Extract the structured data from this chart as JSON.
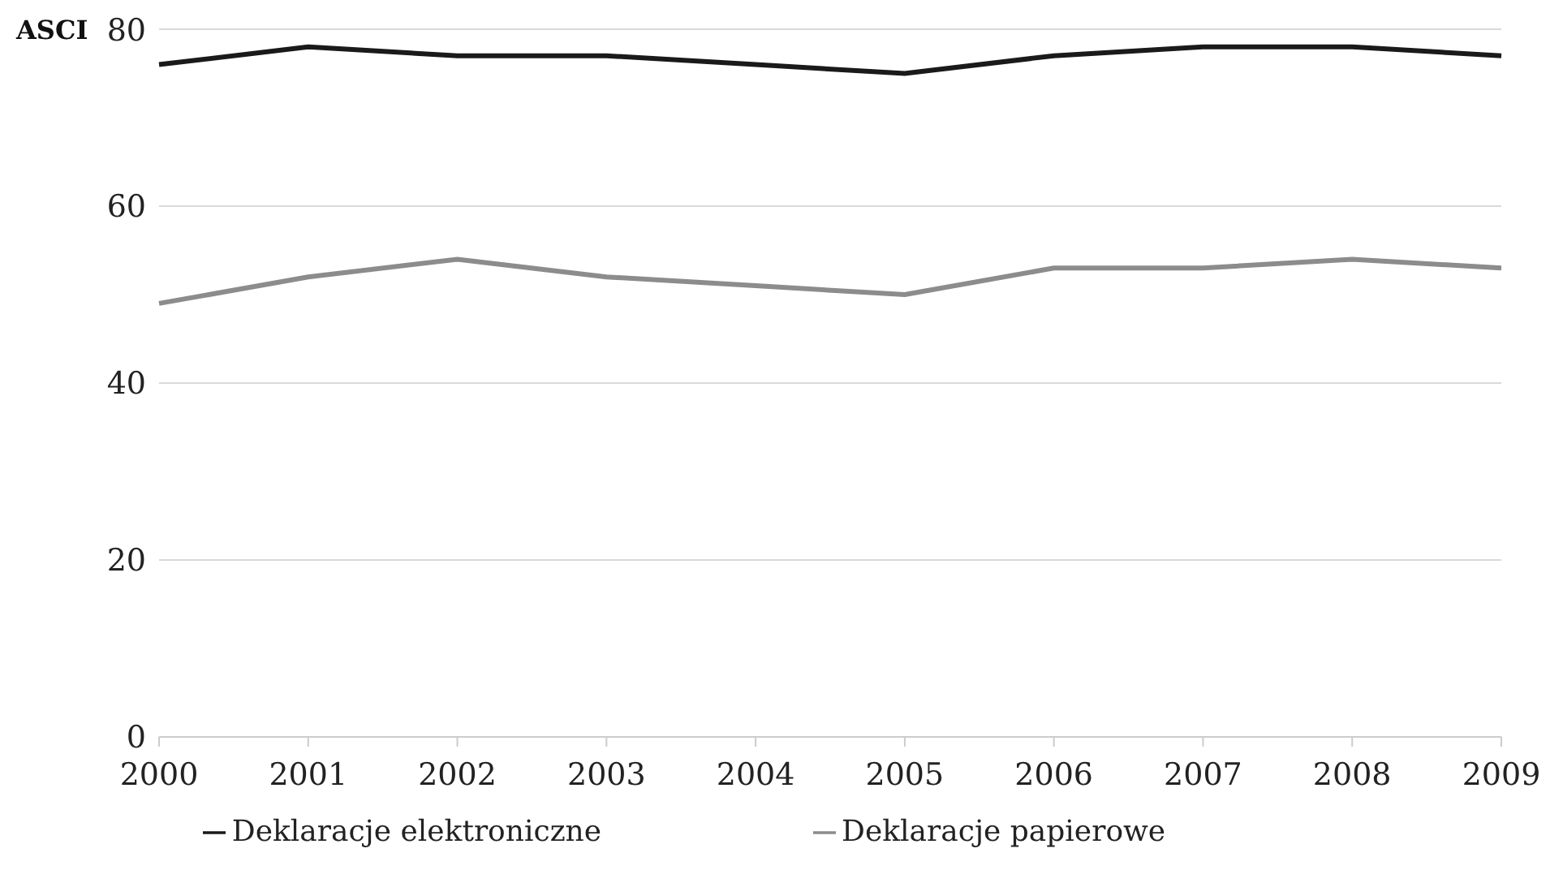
{
  "chart_data": {
    "type": "line",
    "ylabel": "ASCI",
    "categories": [
      "2000",
      "2001",
      "2002",
      "2003",
      "2004",
      "2005",
      "2006",
      "2007",
      "2008",
      "2009"
    ],
    "series": [
      {
        "name": "Deklaracje elektroniczne",
        "color": "#1a1a1a",
        "values": [
          76,
          78,
          77,
          77,
          76,
          75,
          77,
          78,
          78,
          77
        ]
      },
      {
        "name": "Deklaracje papierowe",
        "color": "#8c8c8c",
        "values": [
          49,
          52,
          54,
          52,
          51,
          50,
          53,
          53,
          54,
          53
        ]
      }
    ],
    "ylim": [
      0,
      80
    ],
    "yticks": [
      0,
      20,
      40,
      60,
      80
    ],
    "grid": "y",
    "legend": "bottom",
    "marker": "none",
    "line_style": "solid"
  }
}
